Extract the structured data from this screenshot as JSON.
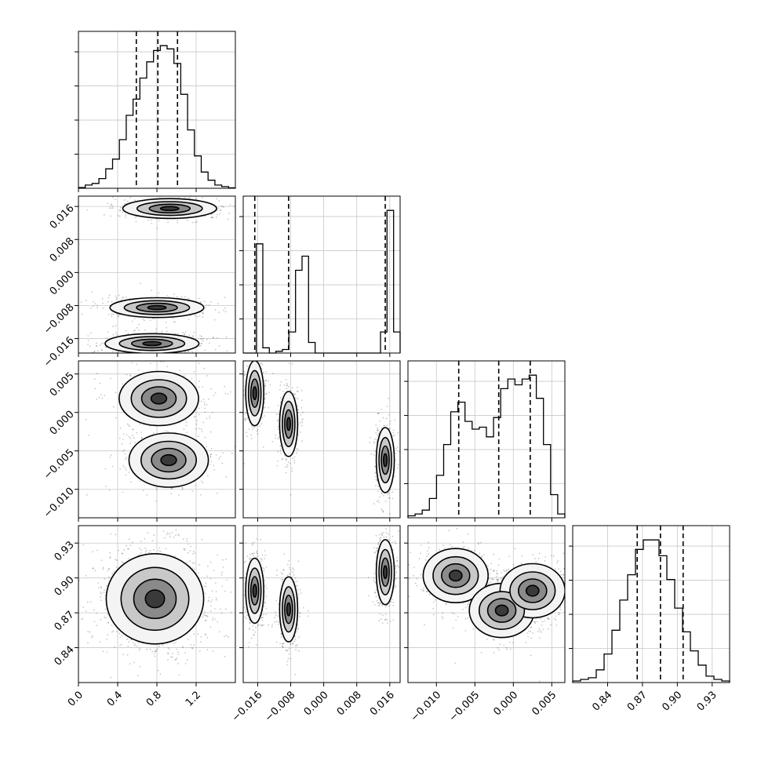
{
  "chart_data": {
    "type": "corner",
    "grid": true,
    "parameters": [
      {
        "range": [
          0.0,
          1.6
        ],
        "ticks": [
          0.0,
          0.4,
          0.8,
          1.2
        ],
        "tick_labels": [
          "0.0",
          "0.4",
          "0.8",
          "1.2"
        ],
        "quantiles": [
          0.59,
          0.81,
          1.01
        ],
        "histogram": [
          0.5,
          2,
          3,
          6,
          12,
          18,
          30,
          45,
          55,
          68,
          78,
          85,
          88,
          86,
          77,
          58,
          36,
          20,
          10,
          5,
          2,
          1,
          0.3
        ]
      },
      {
        "range": [
          -0.0195,
          0.0185
        ],
        "ticks": [
          -0.016,
          -0.008,
          0.0,
          0.008,
          0.016
        ],
        "tick_labels": [
          "−0.016",
          "−0.008",
          "0.000",
          "0.008",
          "0.016"
        ],
        "quantiles": [
          -0.0167,
          -0.0085,
          0.0149
        ],
        "histogram": [
          0,
          0,
          62,
          3,
          0,
          1,
          2,
          12,
          47,
          55,
          6,
          0,
          0,
          0,
          0,
          0,
          0,
          0,
          0,
          0,
          0,
          12,
          81,
          12
        ]
      },
      {
        "range": [
          -0.0137,
          0.0067
        ],
        "ticks": [
          -0.01,
          -0.005,
          0.0,
          0.005
        ],
        "tick_labels": [
          "−0.010",
          "−0.005",
          "0.000",
          "0.005"
        ],
        "quantiles": [
          -0.0071,
          -0.0019,
          0.0022
        ],
        "histogram": [
          1,
          2,
          4,
          10,
          22,
          38,
          55,
          60,
          50,
          46,
          47,
          42,
          52,
          67,
          72,
          69,
          72,
          74,
          62,
          38,
          12,
          2
        ]
      },
      {
        "range": [
          0.81,
          0.945
        ],
        "ticks": [
          0.84,
          0.87,
          0.9,
          0.93
        ],
        "tick_labels": [
          "0.84",
          "0.87",
          "0.90",
          "0.93"
        ],
        "quantiles": [
          0.8655,
          0.8855,
          0.905
        ],
        "histogram": [
          1,
          2,
          3,
          8,
          18,
          33,
          52,
          68,
          84,
          90,
          90,
          80,
          65,
          47,
          32,
          20,
          11,
          4,
          2,
          1
        ]
      }
    ],
    "joint_modes": [
      {
        "x_param": 0,
        "y_param": 1,
        "modes": [
          [
            0.93,
            0.0155
          ],
          [
            0.8,
            -0.0085
          ],
          [
            0.75,
            -0.0172
          ]
        ]
      },
      {
        "x_param": 0,
        "y_param": 2,
        "modes": [
          [
            0.82,
            0.0018
          ],
          [
            0.92,
            -0.0062
          ]
        ]
      },
      {
        "x_param": 1,
        "y_param": 2,
        "modes": [
          [
            -0.0167,
            0.0025
          ],
          [
            -0.0085,
            -0.0015
          ],
          [
            0.0149,
            -0.0062
          ]
        ]
      },
      {
        "x_param": 0,
        "y_param": 3,
        "modes": [
          [
            0.78,
            0.882
          ]
        ]
      },
      {
        "x_param": 1,
        "y_param": 3,
        "modes": [
          [
            -0.0167,
            0.889
          ],
          [
            -0.0085,
            0.873
          ],
          [
            0.0149,
            0.905
          ]
        ]
      },
      {
        "x_param": 2,
        "y_param": 3,
        "modes": [
          [
            -0.0075,
            0.902
          ],
          [
            -0.0015,
            0.872
          ],
          [
            0.0025,
            0.889
          ]
        ]
      }
    ]
  },
  "colors": {
    "axes": "#000000",
    "grid": "#c8c8c8",
    "samples": "#000000",
    "background": "#ffffff"
  }
}
